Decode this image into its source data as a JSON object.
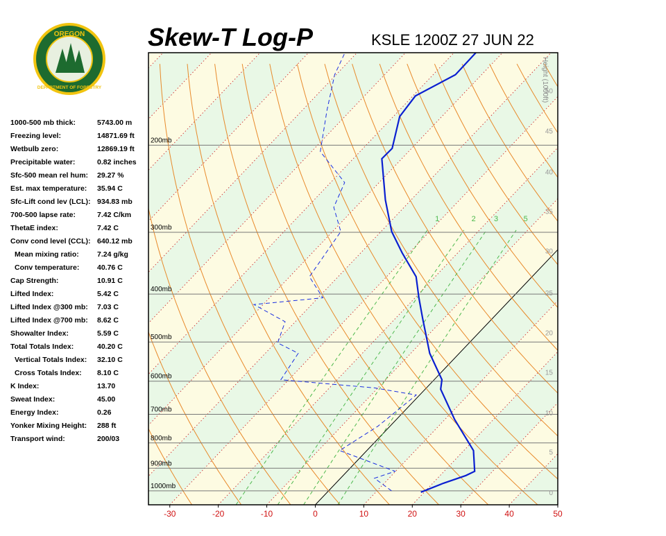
{
  "logo": {
    "top": "OREGON",
    "bottom": "DEPARTMENT OF FORESTRY"
  },
  "indices": [
    {
      "label": "1000-500 mb thick:",
      "value": "5743.00 m"
    },
    {
      "label": "Freezing level:",
      "value": "14871.69 ft"
    },
    {
      "label": "Wetbulb zero:",
      "value": "12869.19 ft"
    },
    {
      "label": "Precipitable water:",
      "value": "0.82 inches"
    },
    {
      "label": "Sfc-500 mean rel hum:",
      "value": "29.27 %"
    },
    {
      "label": "Est. max temperature:",
      "value": "35.94 C"
    },
    {
      "label": "Sfc-Lift cond lev (LCL):",
      "value": "934.83 mb"
    },
    {
      "label": "700-500 lapse rate:",
      "value": "7.42 C/km"
    },
    {
      "label": "ThetaE index:",
      "value": "7.42 C"
    },
    {
      "label": "Conv cond level (CCL):",
      "value": "640.12 mb"
    },
    {
      "label": "Mean mixing ratio:",
      "value": "7.24 g/kg",
      "indent": true
    },
    {
      "label": "Conv temperature:",
      "value": "40.76 C",
      "indent": true
    },
    {
      "label": "Cap Strength:",
      "value": "10.91 C"
    },
    {
      "label": "Lifted Index:",
      "value": "5.42 C"
    },
    {
      "label": "Lifted Index @300 mb:",
      "value": "7.03 C"
    },
    {
      "label": "Lifted Index @700 mb:",
      "value": "8.62 C"
    },
    {
      "label": "Showalter Index:",
      "value": "5.59 C"
    },
    {
      "label": "Total Totals Index:",
      "value": "40.20 C"
    },
    {
      "label": "Vertical Totals Index:",
      "value": "32.10 C",
      "indent": true
    },
    {
      "label": "Cross Totals Index:",
      "value": "8.10 C",
      "indent": true
    },
    {
      "label": "K Index:",
      "value": "13.70"
    },
    {
      "label": "Sweat Index:",
      "value": "45.00"
    },
    {
      "label": "Energy Index:",
      "value": "0.26"
    },
    {
      "label": "Yonker Mixing Height:",
      "value": "288 ft"
    },
    {
      "label": "Transport wind:",
      "value": "200/03"
    }
  ],
  "chart_data": {
    "type": "skewt",
    "title": "Skew-T Log-P",
    "subtitle": "KSLE 1200Z 27 JUN 22",
    "xlim": [
      -34.4,
      50
    ],
    "xticks": [
      -30,
      -20,
      -10,
      0,
      10,
      20,
      30,
      40,
      50
    ],
    "ylim": [
      1067,
      130
    ],
    "log_scale": true,
    "yticks": [
      {
        "value": 1000,
        "label": "1000mb"
      },
      {
        "value": 900,
        "label": "900mb"
      },
      {
        "value": 800,
        "label": "800mb"
      },
      {
        "value": 700,
        "label": "700mb"
      },
      {
        "value": 600,
        "label": "600mb"
      },
      {
        "value": 500,
        "label": "500mb"
      },
      {
        "value": 400,
        "label": "400mb"
      },
      {
        "value": 300,
        "label": "300mb"
      },
      {
        "value": 200,
        "label": "200mb"
      }
    ],
    "height_axis": {
      "label": "Height (1000ft)",
      "ticks": [
        0,
        5,
        10,
        15,
        20,
        25,
        30,
        35,
        40,
        45,
        50
      ],
      "pressures": [
        1006,
        834,
        694,
        575,
        478,
        397,
        327,
        272,
        226,
        187,
        155
      ]
    },
    "mixing_ratios": [
      1,
      2,
      3,
      5
    ],
    "series": [
      {
        "color": "#0a1fd0",
        "style": "solid",
        "pressure": [
          1006,
          965,
          931,
          913,
          829,
          717,
          623,
          596,
          527,
          448,
          407,
          369,
          330,
          299,
          258,
          213,
          203,
          175,
          159,
          144,
          130
        ],
        "values": [
          19.3,
          22.2,
          25.3,
          26.3,
          22.0,
          12.0,
          3.2,
          1.6,
          -6.1,
          -14.4,
          -19.2,
          -23.9,
          -31.5,
          -37.8,
          -45.3,
          -54.1,
          -54.0,
          -58.7,
          -59.5,
          -55.4,
          -55.5
        ]
      },
      {
        "color": "#1a2ee0",
        "style": "dashed",
        "pressure": [
          1000,
          943,
          913,
          829,
          740,
          640,
          619,
          596,
          527,
          502,
          455,
          420,
          407,
          369,
          299,
          267,
          238,
          206,
          170,
          144,
          130
        ],
        "values": [
          13.0,
          7.0,
          9.9,
          -5.6,
          -2.5,
          -0.7,
          -10.7,
          -31.6,
          -33.2,
          -39.5,
          -42.1,
          -51.9,
          -39.0,
          -45.9,
          -48.3,
          -54.5,
          -57.1,
          -68.2,
          -74.9,
          -80.3,
          -82.5
        ]
      }
    ]
  }
}
